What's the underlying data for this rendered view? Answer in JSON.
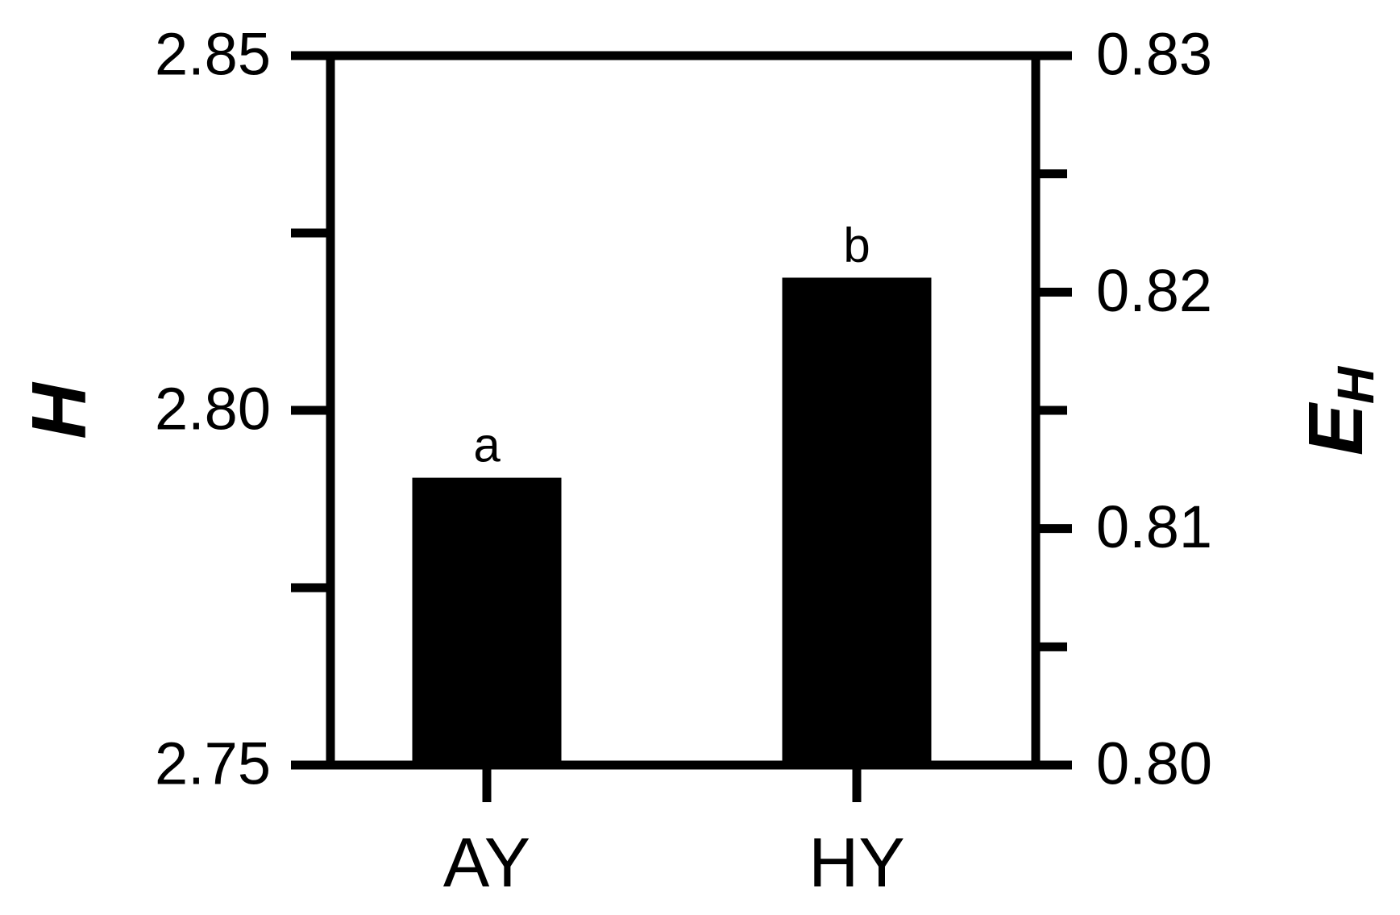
{
  "chart_data": {
    "type": "bar",
    "categories": [
      "AY",
      "HY"
    ],
    "values": [
      2.7905,
      2.8187
    ],
    "bar_labels": [
      "a",
      "b"
    ],
    "color": "#000000",
    "ylabel": "H",
    "y2label": "E",
    "y2label_sub": "H",
    "ylim": [
      2.75,
      2.85
    ],
    "yticks": [
      2.75,
      {
        "value": 2.8,
        "label": "2.80"
      },
      2.85
    ],
    "yminorticks": [
      2.775,
      2.825
    ],
    "y2lim": [
      0.8,
      0.83
    ],
    "y2ticks": [
      {
        "value": 0.8,
        "label": "0.80"
      },
      0.81,
      0.82,
      0.83
    ],
    "y2minorticks": [
      0.805,
      0.815,
      0.825
    ]
  }
}
